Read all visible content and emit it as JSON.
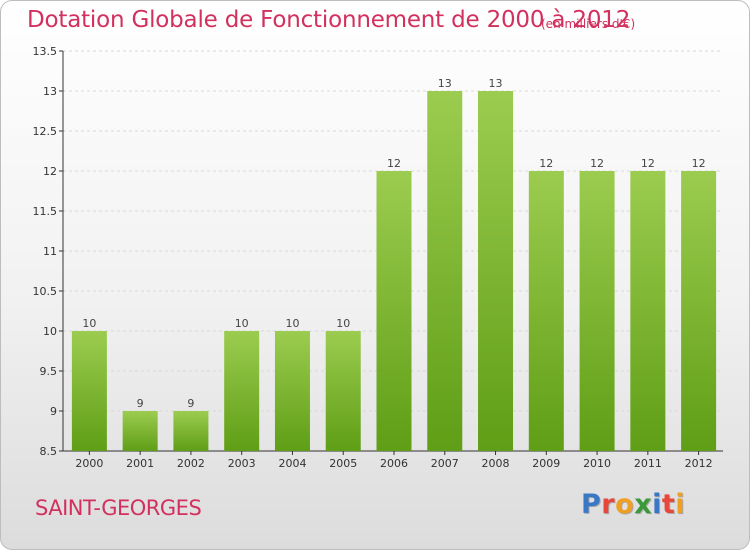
{
  "header": {
    "title": "Dotation Globale de Fonctionnement de 2000 à 2012",
    "unit": "(en milliers d'€)"
  },
  "footer": {
    "commune": "SAINT-GEORGES",
    "logo": "Proxiti"
  },
  "logo_letters": [
    {
      "ch": "P",
      "color": "#3a78c6"
    },
    {
      "ch": "r",
      "color": "#e8473c"
    },
    {
      "ch": "o",
      "color": "#f0a020"
    },
    {
      "ch": "x",
      "color": "#3a9a3a"
    },
    {
      "ch": "i",
      "color": "#3a78c6"
    },
    {
      "ch": "t",
      "color": "#e8473c"
    },
    {
      "ch": "i",
      "color": "#f0a020"
    }
  ],
  "colors": {
    "title": "#d2305e",
    "bar_top": "#9ccc4f",
    "bar_bottom": "#5f9e16",
    "grid": "#d8d8d8",
    "axis": "#333333"
  },
  "chart_data": {
    "type": "bar",
    "categories": [
      "2000",
      "2001",
      "2002",
      "2003",
      "2004",
      "2005",
      "2006",
      "2007",
      "2008",
      "2009",
      "2010",
      "2011",
      "2012"
    ],
    "values": [
      10,
      9,
      9,
      10,
      10,
      10,
      12,
      13,
      13,
      12,
      12,
      12,
      12
    ],
    "value_labels": [
      "10",
      "9",
      "9",
      "10",
      "10",
      "10",
      "12",
      "13",
      "13",
      "12",
      "12",
      "12",
      "12"
    ],
    "ylim": [
      8.5,
      13.5
    ],
    "yticks": [
      "8.5",
      "9",
      "9.5",
      "10",
      "10.5",
      "11",
      "11.5",
      "12",
      "12.5",
      "13",
      "13.5"
    ],
    "grid": true
  }
}
